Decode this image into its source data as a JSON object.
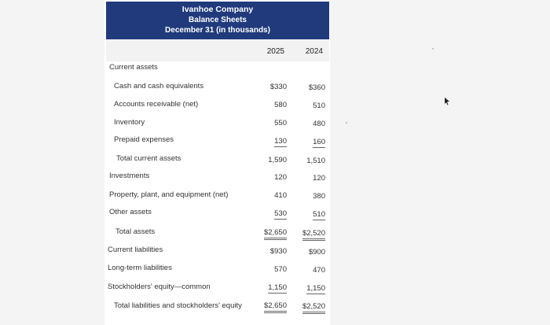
{
  "header": {
    "company": "Ivanhoe Company",
    "statement": "Balance Sheets",
    "date": "December 31 (in thousands)"
  },
  "years": [
    "2025",
    "2024"
  ],
  "rows": [
    {
      "label": "Current assets",
      "v2025": "",
      "v2024": ""
    },
    {
      "label": "Cash and cash equivalents",
      "v2025": "$330",
      "v2024": "$360"
    },
    {
      "label": "Accounts receivable (net)",
      "v2025": "580",
      "v2024": "510"
    },
    {
      "label": "Inventory",
      "v2025": "550",
      "v2024": "480"
    },
    {
      "label": "Prepaid expenses",
      "v2025": "130",
      "v2024": "160"
    },
    {
      "label": "Total current assets",
      "v2025": "1,590",
      "v2024": "1,510"
    },
    {
      "label": "Investments",
      "v2025": "120",
      "v2024": "120"
    },
    {
      "label": "Property, plant, and equipment (net)",
      "v2025": "410",
      "v2024": "380"
    },
    {
      "label": "Other assets",
      "v2025": "530",
      "v2024": "510"
    },
    {
      "label": "Total assets",
      "v2025": "$2,650",
      "v2024": "$2,520"
    },
    {
      "label": "Current liabilities",
      "v2025": "$930",
      "v2024": "$900"
    },
    {
      "label": "Long-term liabilities",
      "v2025": "570",
      "v2024": "470"
    },
    {
      "label": "Stockholders' equity—common",
      "v2025": "1,150",
      "v2024": "1,150"
    },
    {
      "label": "Total liabilities and stockholders' equity",
      "v2025": "$2,650",
      "v2024": "$2,520"
    }
  ]
}
